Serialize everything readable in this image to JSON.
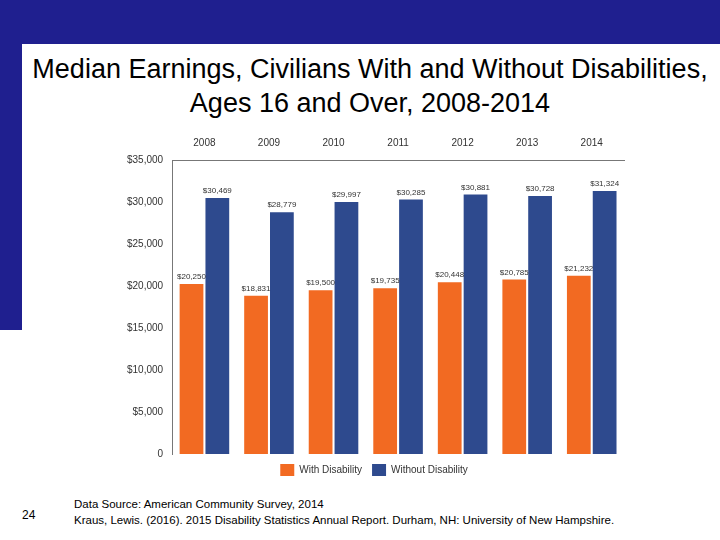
{
  "chart_data": {
    "type": "bar",
    "title": "Median Earnings, Civilians With and Without Disabilities, Ages 16 and Over, 2008-2014",
    "categories": [
      "2008",
      "2009",
      "2010",
      "2011",
      "2012",
      "2013",
      "2014"
    ],
    "series": [
      {
        "name": "With Disability",
        "color": "#f26a22",
        "values": [
          20250,
          18831,
          19500,
          19735,
          20448,
          20785,
          21232
        ],
        "value_labels": [
          "$20,250",
          "$18,831",
          "$19,500",
          "$19,735",
          "$20,448",
          "$20,785",
          "$21,232"
        ]
      },
      {
        "name": "Without Disability",
        "color": "#2e4a8e",
        "values": [
          30469,
          28779,
          29997,
          30285,
          30881,
          30728,
          31324
        ],
        "value_labels": [
          "$30,469",
          "$28,779",
          "$29,997",
          "$30,285",
          "$30,881",
          "$30,728",
          "$31,324"
        ]
      }
    ],
    "ylim": [
      0,
      35000
    ],
    "yticks": [
      {
        "value": 0,
        "label": "0"
      },
      {
        "value": 5000,
        "label": "$5,000"
      },
      {
        "value": 10000,
        "label": "$10,000"
      },
      {
        "value": 15000,
        "label": "$15,000"
      },
      {
        "value": 20000,
        "label": "$20,000"
      },
      {
        "value": 25000,
        "label": "$25,000"
      },
      {
        "value": 30000,
        "label": "$30,000"
      },
      {
        "value": 35000,
        "label": "$35,000"
      }
    ],
    "grid": false,
    "legend": "bottom",
    "data_labels": true
  },
  "slide": {
    "number": "24",
    "source": [
      "Data Source: American Community Survey, 2014",
      "Kraus, Lewis. (2016). 2015 Disability Statistics Annual Report. Durham, NH: University of New Hampshire."
    ]
  }
}
